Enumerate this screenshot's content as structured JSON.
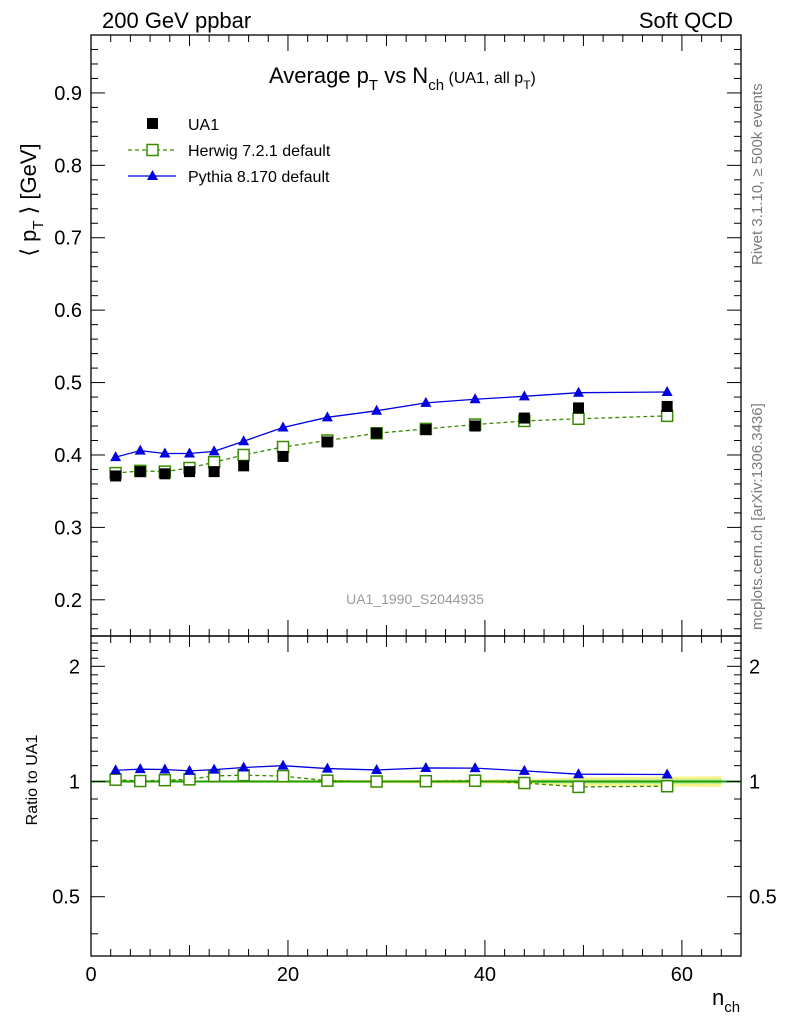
{
  "header": {
    "left": "200 GeV ppbar",
    "right": "Soft QCD"
  },
  "side_labels": {
    "rivet": "Rivet 3.1.10, ≥ 500k events",
    "mcplots": "mcplots.cern.ch [arXiv:1306.3436]"
  },
  "colors": {
    "data": "#000000",
    "herwig": "#3a8a00",
    "pythia": "#0000e0",
    "band_green": "#b8ec9a",
    "band_yellow": "#f4f48a",
    "ratio_line": "#1f9e00",
    "analysis_label": "#9a9a9a"
  },
  "chart_data": [
    {
      "type": "line",
      "panel": "main",
      "title": {
        "main": "Average p",
        "sub1": "T",
        "mid": " vs N",
        "sub2": "ch",
        "paren": " (UA1, all p",
        "sub3": "T",
        "close": ")"
      },
      "ylabel": {
        "pre": "⟨ p",
        "sub": "T",
        "post": " ⟩ [GeV]"
      },
      "analysis_label": "UA1_1990_S2044935",
      "xlim": [
        0,
        66
      ],
      "ylim": [
        0.15,
        0.98
      ],
      "yticks": [
        0.2,
        0.3,
        0.4,
        0.5,
        0.6,
        0.7,
        0.8,
        0.9
      ],
      "ytick_labels": [
        "0.2",
        "0.3",
        "0.4",
        "0.5",
        "0.6",
        "0.7",
        "0.8",
        "0.9"
      ],
      "legend": {
        "placement": "top-left",
        "entries": [
          "UA1",
          "Herwig 7.2.1 default",
          "Pythia 8.170 default"
        ]
      },
      "series": [
        {
          "name": "UA1",
          "marker": "filled-square",
          "x": [
            2.5,
            5,
            7.5,
            10,
            12.5,
            15.5,
            19.5,
            24,
            29,
            34,
            39,
            44,
            49.5,
            58.5
          ],
          "y": [
            0.371,
            0.377,
            0.374,
            0.377,
            0.377,
            0.385,
            0.398,
            0.418,
            0.43,
            0.435,
            0.44,
            0.451,
            0.465,
            0.467
          ]
        },
        {
          "name": "Herwig 7.2.1 default",
          "marker": "open-square",
          "line": "dashed",
          "x": [
            2.5,
            5,
            7.5,
            10,
            12.5,
            15.5,
            19.5,
            24,
            29,
            34,
            39,
            44,
            49.5,
            58.5
          ],
          "y": [
            0.375,
            0.378,
            0.377,
            0.382,
            0.39,
            0.4,
            0.411,
            0.42,
            0.43,
            0.436,
            0.442,
            0.447,
            0.45,
            0.454
          ]
        },
        {
          "name": "Pythia 8.170 default",
          "marker": "filled-triangle",
          "line": "solid",
          "x": [
            2.5,
            5,
            7.5,
            10,
            12.5,
            15.5,
            19.5,
            24,
            29,
            34,
            39,
            44,
            49.5,
            58.5
          ],
          "y": [
            0.397,
            0.406,
            0.402,
            0.402,
            0.405,
            0.419,
            0.438,
            0.452,
            0.461,
            0.472,
            0.477,
            0.481,
            0.486,
            0.487
          ]
        }
      ]
    },
    {
      "type": "line",
      "panel": "ratio",
      "ylabel": "Ratio to UA1",
      "xlabel": {
        "main": "n",
        "sub": "ch"
      },
      "xlim": [
        0,
        66
      ],
      "ylim": [
        0.35,
        2.4
      ],
      "xticks": [
        0,
        20,
        40,
        60
      ],
      "xtick_labels": [
        "0",
        "20",
        "40",
        "60"
      ],
      "yticks": [
        0.5,
        1,
        2
      ],
      "ytick_labels": [
        "0.5",
        "1",
        "2"
      ],
      "band": {
        "x": [
          2.5,
          5,
          7.5,
          10,
          12.5,
          15.5,
          19.5,
          24,
          29,
          34,
          39,
          44,
          49.5,
          58.5,
          64
        ],
        "green": [
          0.004,
          0.004,
          0.004,
          0.004,
          0.004,
          0.004,
          0.005,
          0.005,
          0.006,
          0.006,
          0.007,
          0.008,
          0.012,
          0.014,
          0.015
        ],
        "yellow": [
          0.007,
          0.007,
          0.007,
          0.007,
          0.007,
          0.008,
          0.008,
          0.009,
          0.01,
          0.011,
          0.013,
          0.015,
          0.025,
          0.03,
          0.032
        ]
      },
      "series": [
        {
          "name": "Herwig 7.2.1 default",
          "marker": "open-square",
          "line": "dashed",
          "x": [
            2.5,
            5,
            7.5,
            10,
            12.5,
            15.5,
            19.5,
            24,
            29,
            34,
            39,
            44,
            49.5,
            58.5
          ],
          "y": [
            1.011,
            1.003,
            1.008,
            1.013,
            1.034,
            1.039,
            1.033,
            1.005,
            1.0,
            1.002,
            1.005,
            0.991,
            0.968,
            0.972
          ]
        },
        {
          "name": "Pythia 8.170 default",
          "marker": "filled-triangle",
          "line": "solid",
          "x": [
            2.5,
            5,
            7.5,
            10,
            12.5,
            15.5,
            19.5,
            24,
            29,
            34,
            39,
            44,
            49.5,
            58.5
          ],
          "y": [
            1.07,
            1.077,
            1.075,
            1.066,
            1.074,
            1.088,
            1.1,
            1.081,
            1.072,
            1.085,
            1.084,
            1.066,
            1.045,
            1.043
          ]
        }
      ]
    }
  ]
}
